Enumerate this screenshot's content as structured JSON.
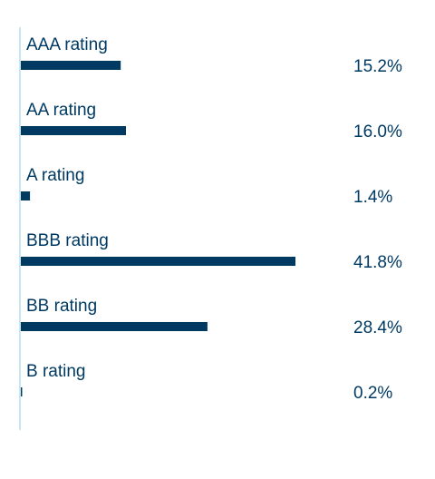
{
  "chart_data": {
    "type": "bar",
    "orientation": "horizontal",
    "categories": [
      "AAA rating",
      "AA rating",
      "A rating",
      "BBB rating",
      "BB rating",
      "B rating"
    ],
    "values": [
      15.2,
      16.0,
      1.4,
      41.8,
      28.4,
      0.2
    ],
    "value_labels": [
      "15.2%",
      "16.0%",
      "1.4%",
      "41.8%",
      "28.4%",
      "0.2%"
    ],
    "unit": "%",
    "xlim": [
      0,
      100
    ],
    "grid": false,
    "legend": "none"
  },
  "colors": {
    "bar": "#003a63",
    "text": "#003a63",
    "axis_line": "#b7dde8"
  }
}
